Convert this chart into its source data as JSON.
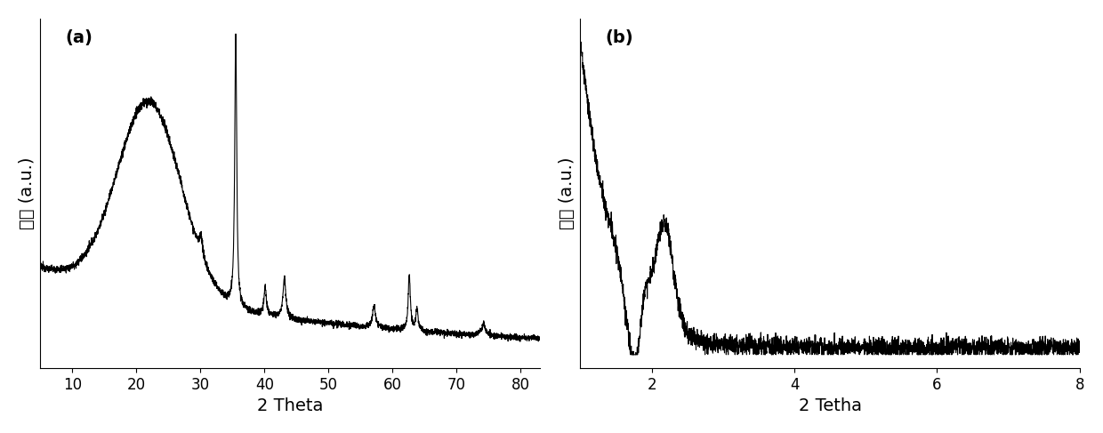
{
  "panel_a": {
    "label": "(a)",
    "xlabel": "2 Theta",
    "ylabel": "强度 (a.u.)",
    "xlim": [
      5,
      83
    ],
    "xticks": [
      10,
      20,
      30,
      40,
      50,
      60,
      70,
      80
    ],
    "noise_level": 0.01
  },
  "panel_b": {
    "label": "(b)",
    "xlabel": "2 Tetha",
    "ylabel": "强度 (a.u.)",
    "xlim": [
      1,
      8
    ],
    "xticks": [
      2,
      4,
      6,
      8
    ],
    "noise_level": 0.015
  },
  "line_color": "#000000",
  "line_width": 0.8,
  "label_fontsize": 14,
  "tick_fontsize": 12,
  "panel_label_fontsize": 14,
  "background_color": "#ffffff",
  "figure_size": [
    12.4,
    4.87
  ],
  "dpi": 100
}
